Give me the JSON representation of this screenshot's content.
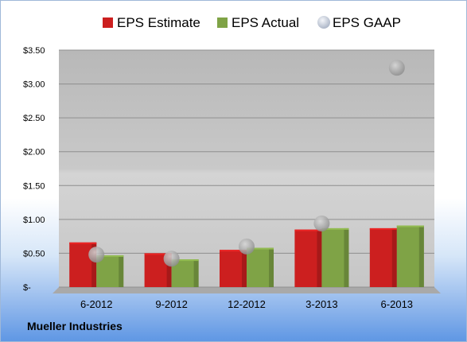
{
  "company": "Mueller Industries",
  "chart_data": {
    "type": "bar",
    "categories": [
      "6-2012",
      "9-2012",
      "12-2012",
      "3-2013",
      "6-2013"
    ],
    "series": [
      {
        "name": "EPS Estimate",
        "type": "bar",
        "color": "#cc1f1f",
        "values": [
          0.66,
          0.5,
          0.55,
          0.85,
          0.87
        ]
      },
      {
        "name": "EPS Actual",
        "type": "bar",
        "color": "#7fa346",
        "values": [
          0.47,
          0.41,
          0.58,
          0.87,
          0.91
        ]
      },
      {
        "name": "EPS GAAP",
        "type": "scatter",
        "color": "#a9a9a9",
        "values": [
          0.48,
          0.42,
          0.6,
          0.94,
          3.24
        ]
      }
    ],
    "y_ticks": [
      {
        "value": 0,
        "label": "$-"
      },
      {
        "value": 0.5,
        "label": "$0.50"
      },
      {
        "value": 1.0,
        "label": "$1.00"
      },
      {
        "value": 1.5,
        "label": "$1.50"
      },
      {
        "value": 2.0,
        "label": "$2.00"
      },
      {
        "value": 2.5,
        "label": "$2.50"
      },
      {
        "value": 3.0,
        "label": "$3.00"
      },
      {
        "value": 3.5,
        "label": "$3.50"
      }
    ],
    "ylim": [
      0,
      3.5
    ],
    "grid": true,
    "legend": "top-center"
  }
}
